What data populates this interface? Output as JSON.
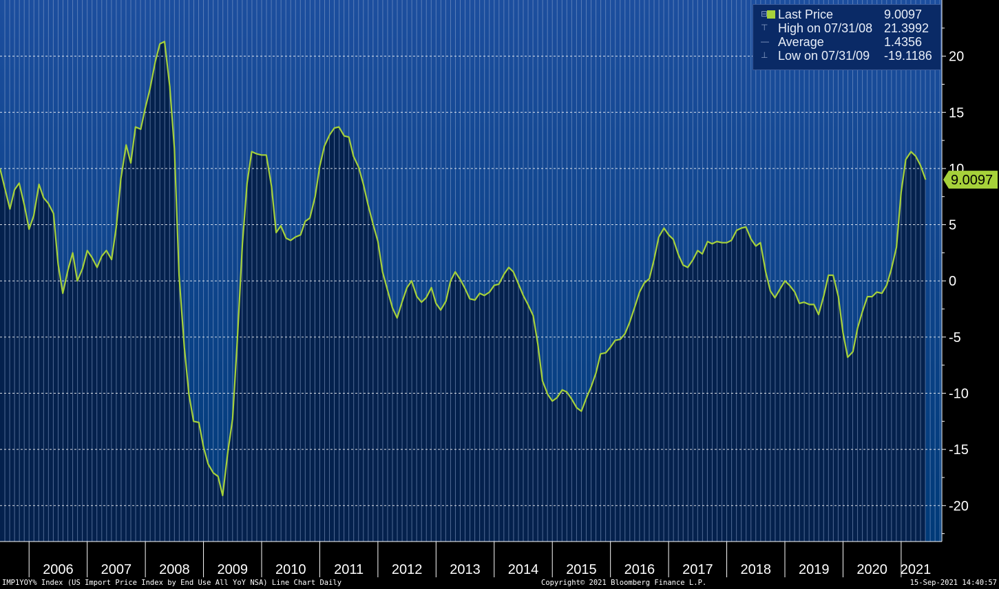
{
  "chart_data": {
    "type": "area",
    "title": "",
    "xlabel": "",
    "ylabel": "",
    "x_tick_labels": [
      "2006",
      "2007",
      "2008",
      "2009",
      "2010",
      "2011",
      "2012",
      "2013",
      "2014",
      "2015",
      "2016",
      "2017",
      "2018",
      "2019",
      "2020",
      "2021"
    ],
    "y_tick_labels": [
      "20",
      "15",
      "10",
      "5",
      "0",
      "-5",
      "-10",
      "-15",
      "-20"
    ],
    "y_ticks": [
      20,
      15,
      10,
      5,
      0,
      -5,
      -10,
      -15,
      -20
    ],
    "xlim": [
      2005.5,
      2021.7
    ],
    "ylim": [
      -23.2,
      25
    ],
    "grid": true,
    "series": [
      {
        "name": "IMP1YOY% Index",
        "points": [
          [
            2005.5,
            10.0
          ],
          [
            2005.58,
            8.3
          ],
          [
            2005.67,
            6.4
          ],
          [
            2005.75,
            8.1
          ],
          [
            2005.83,
            8.7
          ],
          [
            2005.92,
            6.7
          ],
          [
            2006.0,
            4.6
          ],
          [
            2006.08,
            5.8
          ],
          [
            2006.17,
            8.6
          ],
          [
            2006.25,
            7.4
          ],
          [
            2006.33,
            6.9
          ],
          [
            2006.42,
            6.0
          ],
          [
            2006.5,
            1.5
          ],
          [
            2006.58,
            -1.1
          ],
          [
            2006.67,
            1.0
          ],
          [
            2006.75,
            2.5
          ],
          [
            2006.83,
            0.0
          ],
          [
            2006.92,
            1.1
          ],
          [
            2007.0,
            2.7
          ],
          [
            2007.08,
            2.1
          ],
          [
            2007.17,
            1.2
          ],
          [
            2007.25,
            2.2
          ],
          [
            2007.33,
            2.7
          ],
          [
            2007.42,
            1.9
          ],
          [
            2007.5,
            4.8
          ],
          [
            2007.58,
            9.1
          ],
          [
            2007.67,
            12.1
          ],
          [
            2007.75,
            10.5
          ],
          [
            2007.83,
            13.7
          ],
          [
            2007.92,
            13.5
          ],
          [
            2008.0,
            15.4
          ],
          [
            2008.08,
            17.1
          ],
          [
            2008.17,
            19.5
          ],
          [
            2008.25,
            21.1
          ],
          [
            2008.33,
            21.3
          ],
          [
            2008.42,
            17.3
          ],
          [
            2008.5,
            11.8
          ],
          [
            2008.58,
            0.5
          ],
          [
            2008.67,
            -5.9
          ],
          [
            2008.75,
            -10.1
          ],
          [
            2008.83,
            -12.5
          ],
          [
            2008.92,
            -12.6
          ],
          [
            2009.0,
            -14.8
          ],
          [
            2009.08,
            -16.3
          ],
          [
            2009.17,
            -17.1
          ],
          [
            2009.25,
            -17.4
          ],
          [
            2009.33,
            -19.1
          ],
          [
            2009.42,
            -15.2
          ],
          [
            2009.5,
            -12.3
          ],
          [
            2009.58,
            -5.5
          ],
          [
            2009.67,
            3.3
          ],
          [
            2009.75,
            8.7
          ],
          [
            2009.83,
            11.5
          ],
          [
            2009.92,
            11.3
          ],
          [
            2010.0,
            11.2
          ],
          [
            2010.08,
            11.2
          ],
          [
            2010.17,
            8.4
          ],
          [
            2010.25,
            4.3
          ],
          [
            2010.33,
            4.9
          ],
          [
            2010.42,
            3.8
          ],
          [
            2010.5,
            3.6
          ],
          [
            2010.58,
            3.9
          ],
          [
            2010.67,
            4.1
          ],
          [
            2010.75,
            5.3
          ],
          [
            2010.83,
            5.6
          ],
          [
            2010.92,
            7.5
          ],
          [
            2011.0,
            10.2
          ],
          [
            2011.08,
            12.0
          ],
          [
            2011.17,
            13.0
          ],
          [
            2011.25,
            13.6
          ],
          [
            2011.33,
            13.7
          ],
          [
            2011.42,
            12.9
          ],
          [
            2011.5,
            12.8
          ],
          [
            2011.58,
            11.1
          ],
          [
            2011.67,
            10.1
          ],
          [
            2011.75,
            8.6
          ],
          [
            2011.83,
            6.8
          ],
          [
            2011.92,
            5.0
          ],
          [
            2012.0,
            3.5
          ],
          [
            2012.08,
            0.8
          ],
          [
            2012.17,
            -0.9
          ],
          [
            2012.25,
            -2.4
          ],
          [
            2012.33,
            -3.3
          ],
          [
            2012.42,
            -1.8
          ],
          [
            2012.5,
            -0.6
          ],
          [
            2012.58,
            0.0
          ],
          [
            2012.67,
            -1.4
          ],
          [
            2012.75,
            -1.9
          ],
          [
            2012.83,
            -1.5
          ],
          [
            2012.92,
            -0.6
          ],
          [
            2013.0,
            -2.0
          ],
          [
            2013.08,
            -2.6
          ],
          [
            2013.17,
            -1.8
          ],
          [
            2013.25,
            0.0
          ],
          [
            2013.33,
            0.8
          ],
          [
            2013.42,
            0.1
          ],
          [
            2013.5,
            -0.7
          ],
          [
            2013.58,
            -1.6
          ],
          [
            2013.67,
            -1.7
          ],
          [
            2013.75,
            -1.1
          ],
          [
            2013.83,
            -1.3
          ],
          [
            2013.92,
            -1.0
          ],
          [
            2014.0,
            -0.4
          ],
          [
            2014.08,
            -0.3
          ],
          [
            2014.17,
            0.6
          ],
          [
            2014.25,
            1.2
          ],
          [
            2014.33,
            0.8
          ],
          [
            2014.42,
            -0.3
          ],
          [
            2014.5,
            -1.3
          ],
          [
            2014.58,
            -2.1
          ],
          [
            2014.67,
            -3.1
          ],
          [
            2014.75,
            -5.6
          ],
          [
            2014.83,
            -8.9
          ],
          [
            2014.92,
            -10.1
          ],
          [
            2015.0,
            -10.7
          ],
          [
            2015.08,
            -10.4
          ],
          [
            2015.17,
            -9.7
          ],
          [
            2015.25,
            -9.9
          ],
          [
            2015.33,
            -10.5
          ],
          [
            2015.42,
            -11.3
          ],
          [
            2015.5,
            -11.6
          ],
          [
            2015.58,
            -10.5
          ],
          [
            2015.67,
            -9.4
          ],
          [
            2015.75,
            -8.2
          ],
          [
            2015.83,
            -6.5
          ],
          [
            2015.92,
            -6.4
          ],
          [
            2016.0,
            -5.9
          ],
          [
            2016.08,
            -5.3
          ],
          [
            2016.17,
            -5.2
          ],
          [
            2016.25,
            -4.7
          ],
          [
            2016.33,
            -3.7
          ],
          [
            2016.42,
            -2.3
          ],
          [
            2016.5,
            -1.0
          ],
          [
            2016.58,
            -0.2
          ],
          [
            2016.67,
            0.2
          ],
          [
            2016.75,
            1.9
          ],
          [
            2016.83,
            3.9
          ],
          [
            2016.92,
            4.7
          ],
          [
            2017.0,
            4.1
          ],
          [
            2017.08,
            3.7
          ],
          [
            2017.17,
            2.3
          ],
          [
            2017.25,
            1.4
          ],
          [
            2017.33,
            1.2
          ],
          [
            2017.42,
            1.9
          ],
          [
            2017.5,
            2.7
          ],
          [
            2017.58,
            2.4
          ],
          [
            2017.67,
            3.5
          ],
          [
            2017.75,
            3.3
          ],
          [
            2017.83,
            3.5
          ],
          [
            2017.92,
            3.4
          ],
          [
            2018.0,
            3.4
          ],
          [
            2018.08,
            3.6
          ],
          [
            2018.17,
            4.5
          ],
          [
            2018.25,
            4.7
          ],
          [
            2018.33,
            4.8
          ],
          [
            2018.42,
            3.7
          ],
          [
            2018.5,
            3.1
          ],
          [
            2018.58,
            3.4
          ],
          [
            2018.67,
            0.8
          ],
          [
            2018.75,
            -0.9
          ],
          [
            2018.83,
            -1.5
          ],
          [
            2018.92,
            -0.7
          ],
          [
            2019.0,
            0.0
          ],
          [
            2019.08,
            -0.4
          ],
          [
            2019.17,
            -1.0
          ],
          [
            2019.25,
            -2.0
          ],
          [
            2019.33,
            -1.9
          ],
          [
            2019.42,
            -2.1
          ],
          [
            2019.5,
            -2.1
          ],
          [
            2019.58,
            -3.0
          ],
          [
            2019.67,
            -1.3
          ],
          [
            2019.75,
            0.5
          ],
          [
            2019.83,
            0.5
          ],
          [
            2019.92,
            -1.4
          ],
          [
            2020.0,
            -4.6
          ],
          [
            2020.08,
            -6.8
          ],
          [
            2020.17,
            -6.3
          ],
          [
            2020.25,
            -4.2
          ],
          [
            2020.33,
            -2.8
          ],
          [
            2020.42,
            -1.4
          ],
          [
            2020.5,
            -1.4
          ],
          [
            2020.58,
            -1.0
          ],
          [
            2020.67,
            -1.1
          ],
          [
            2020.75,
            -0.4
          ],
          [
            2020.83,
            1.0
          ],
          [
            2020.92,
            3.0
          ],
          [
            2021.0,
            7.9
          ],
          [
            2021.08,
            10.8
          ],
          [
            2021.17,
            11.5
          ],
          [
            2021.25,
            11.1
          ],
          [
            2021.33,
            10.3
          ],
          [
            2021.42,
            9.0097
          ]
        ]
      }
    ],
    "legend": {
      "placement": "top-right",
      "rows": [
        {
          "label": "Last Price",
          "value": "9.0097"
        },
        {
          "label": "High on 07/31/08",
          "value": "21.3992"
        },
        {
          "label": "Average",
          "value": "1.4356"
        },
        {
          "label": "Low on 07/31/09",
          "value": "-19.1186"
        }
      ]
    },
    "last_value_label": "9.0097",
    "colors": {
      "line": "#a6d13a",
      "area_fill": "#04214d",
      "background_top": "#1c4e9e",
      "background_bottom": "#003a78",
      "grid": "#ffffff",
      "axis_panel": "#000000",
      "axis_text": "#ffffff"
    }
  },
  "footer": {
    "left": "IMP1YOY% Index (US Import Price Index by End Use All YoY NSA) Line Chart  Daily",
    "center": "Copyright© 2021 Bloomberg Finance L.P.",
    "right": "15-Sep-2021 14:40:57"
  }
}
